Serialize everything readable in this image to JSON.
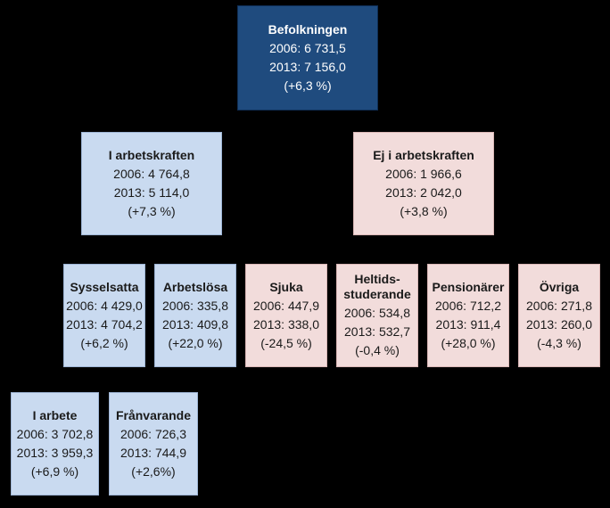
{
  "root": {
    "title": "Befolkningen",
    "y2006": "2006: 6 731,5",
    "y2013": "2013: 7 156,0",
    "change": "(+6,3 %)"
  },
  "level1": [
    {
      "title": "I arbetskraften",
      "y2006": "2006: 4 764,8",
      "y2013": "2013: 5 114,0",
      "change": "(+7,3 %)"
    },
    {
      "title": "Ej i arbetskraften",
      "y2006": "2006: 1 966,6",
      "y2013": "2013: 2 042,0",
      "change": "(+3,8 %)"
    }
  ],
  "level2": [
    {
      "title": "Sysselsatta",
      "y2006": "2006: 4 429,0",
      "y2013": "2013: 4 704,2",
      "change": "(+6,2 %)"
    },
    {
      "title": "Arbetslösa",
      "y2006": "2006: 335,8",
      "y2013": "2013: 409,8",
      "change": "(+22,0 %)"
    },
    {
      "title": "Sjuka",
      "y2006": "2006: 447,9",
      "y2013": "2013: 338,0",
      "change": "(-24,5 %)"
    },
    {
      "title_line1": "Heltids-",
      "title_line2": "studerande",
      "y2006": "2006: 534,8",
      "y2013": "2013: 532,7",
      "change": "(-0,4 %)"
    },
    {
      "title": "Pensionärer",
      "y2006": "2006: 712,2",
      "y2013": "2013: 911,4",
      "change": "(+28,0 %)"
    },
    {
      "title": "Övriga",
      "y2006": "2006: 271,8",
      "y2013": "2013: 260,0",
      "change": "(-4,3 %)"
    }
  ],
  "level3": [
    {
      "title": "I arbete",
      "y2006": "2006: 3 702,8",
      "y2013": "2013: 3 959,3",
      "change": "(+6,9 %)"
    },
    {
      "title": "Frånvarande",
      "y2006": "2006: 726,3",
      "y2013": "2013: 744,9",
      "change": "(+2,6%)"
    }
  ],
  "colors": {
    "root": "#1f4b7e",
    "labour_force": "#c9daf0",
    "not_labour_force": "#f2dcdb",
    "connector": "#000000"
  }
}
